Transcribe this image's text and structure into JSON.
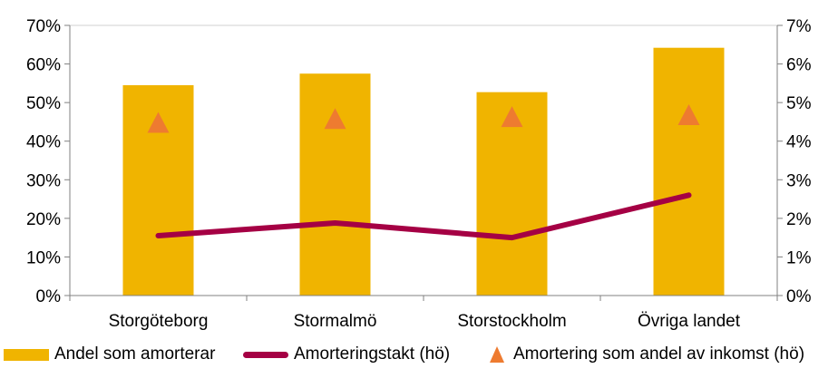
{
  "chart_data": {
    "type": "bar",
    "title": "",
    "categories": [
      "Storgöteborg",
      "Stormalmö",
      "Storstockholm",
      "Övriga landet"
    ],
    "y_left": {
      "ticks": [
        "0%",
        "10%",
        "20%",
        "30%",
        "40%",
        "50%",
        "60%",
        "70%"
      ],
      "ylim": [
        0,
        70
      ]
    },
    "y_right": {
      "ticks": [
        "0%",
        "1%",
        "2%",
        "3%",
        "4%",
        "5%",
        "6%",
        "7%"
      ],
      "ylim": [
        0,
        7
      ]
    },
    "grid": false,
    "legend_position": "bottom",
    "series": [
      {
        "name": "Andel som amorterar",
        "kind": "bar",
        "axis": "left",
        "color": "#F0B400",
        "values": [
          54.5,
          57.5,
          52.7,
          64.2
        ]
      },
      {
        "name": "Amorteringstakt (hö)",
        "kind": "line",
        "axis": "right",
        "color": "#A50044",
        "values": [
          1.55,
          1.88,
          1.5,
          2.6
        ]
      },
      {
        "name": "Amortering som andel av inkomst (hö)",
        "kind": "marker",
        "marker": "triangle",
        "axis": "right",
        "color": "#EE7B30",
        "values": [
          4.45,
          4.55,
          4.6,
          4.65
        ]
      }
    ]
  }
}
